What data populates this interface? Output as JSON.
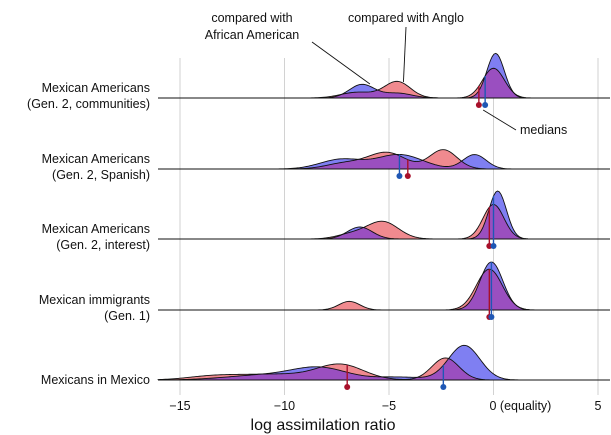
{
  "chart_data": {
    "type": "ridgeline",
    "xlabel": "log assimilation ratio",
    "xlim": [
      -16,
      6
    ],
    "x_ticks": [
      {
        "value": -15,
        "label": "−15"
      },
      {
        "value": -10,
        "label": "−10"
      },
      {
        "value": -5,
        "label": "−5"
      },
      {
        "value": 0,
        "label": "0 (equality)"
      },
      {
        "value": 5,
        "label": "5"
      }
    ],
    "grid": "vertical",
    "colors": {
      "anglo": "#f08a8f",
      "african_american": "#7f7ff2",
      "overlap": "#9a4fc0",
      "anglo_median": "#a8102a",
      "aa_median": "#1f57b4"
    },
    "series": [
      {
        "name": "compared with Anglo"
      },
      {
        "name": "compared with African American"
      }
    ],
    "annotations": [
      {
        "text": "compared with",
        "target_x": -6.2
      },
      {
        "text": "African American",
        "target_x": -6.2
      },
      {
        "text": "compared with Anglo",
        "target_x": -4.5
      },
      {
        "text": "medians",
        "target_x": -0.4
      }
    ],
    "groups": [
      {
        "label_lines": [
          "Mexican Americans",
          "(Gen. 2, communities)"
        ],
        "anglo": {
          "peaks": [
            [
              0.0,
              0.52,
              0.62
            ],
            [
              -4.6,
              0.62,
              0.34
            ],
            [
              -6.5,
              0.8,
              0.12
            ]
          ],
          "median": -0.7
        },
        "african_american": {
          "peaks": [
            [
              0.1,
              0.42,
              0.93
            ],
            [
              -6.3,
              0.6,
              0.28
            ],
            [
              -4.6,
              0.7,
              0.1
            ]
          ],
          "median": -0.4
        }
      },
      {
        "label_lines": [
          "Mexican Americans",
          "(Gen. 2, Spanish)"
        ],
        "anglo": {
          "peaks": [
            [
              -5.1,
              0.9,
              0.34
            ],
            [
              -2.4,
              0.65,
              0.4
            ],
            [
              -7.1,
              0.9,
              0.12
            ]
          ],
          "median": -4.1
        },
        "african_american": {
          "peaks": [
            [
              -4.5,
              1.1,
              0.3
            ],
            [
              -7.3,
              1.0,
              0.2
            ],
            [
              -0.9,
              0.55,
              0.3
            ]
          ],
          "median": -4.5
        }
      },
      {
        "label_lines": [
          "Mexican Americans",
          "(Gen. 2, interest)"
        ],
        "anglo": {
          "peaks": [
            [
              0.0,
              0.5,
              0.72
            ],
            [
              -5.3,
              0.75,
              0.36
            ],
            [
              -6.8,
              0.7,
              0.1
            ]
          ],
          "median": -0.2
        },
        "african_american": {
          "peaks": [
            [
              0.2,
              0.42,
              1.0
            ],
            [
              -6.4,
              0.6,
              0.25
            ]
          ],
          "median": 0.0
        }
      },
      {
        "label_lines": [
          "Mexican immigrants",
          "(Gen. 1)"
        ],
        "anglo": {
          "peaks": [
            [
              -0.2,
              0.62,
              0.85
            ],
            [
              -6.9,
              0.5,
              0.18
            ]
          ],
          "median": -0.2
        },
        "african_american": {
          "peaks": [
            [
              -0.1,
              0.55,
              1.0
            ]
          ],
          "median": -0.1
        }
      },
      {
        "label_lines": [
          "Mexicans in Mexico"
        ],
        "anglo": {
          "peaks": [
            [
              -7.3,
              1.1,
              0.3
            ],
            [
              -2.3,
              0.65,
              0.46
            ],
            [
              -10.5,
              2.0,
              0.12
            ],
            [
              -13.5,
              1.2,
              0.06
            ]
          ],
          "median": -7.0
        },
        "african_american": {
          "peaks": [
            [
              -1.4,
              0.75,
              0.72
            ],
            [
              -8.3,
              1.3,
              0.24
            ],
            [
              -11.0,
              1.8,
              0.1
            ],
            [
              -4.5,
              1.2,
              0.06
            ]
          ],
          "median": -2.4
        }
      }
    ]
  }
}
